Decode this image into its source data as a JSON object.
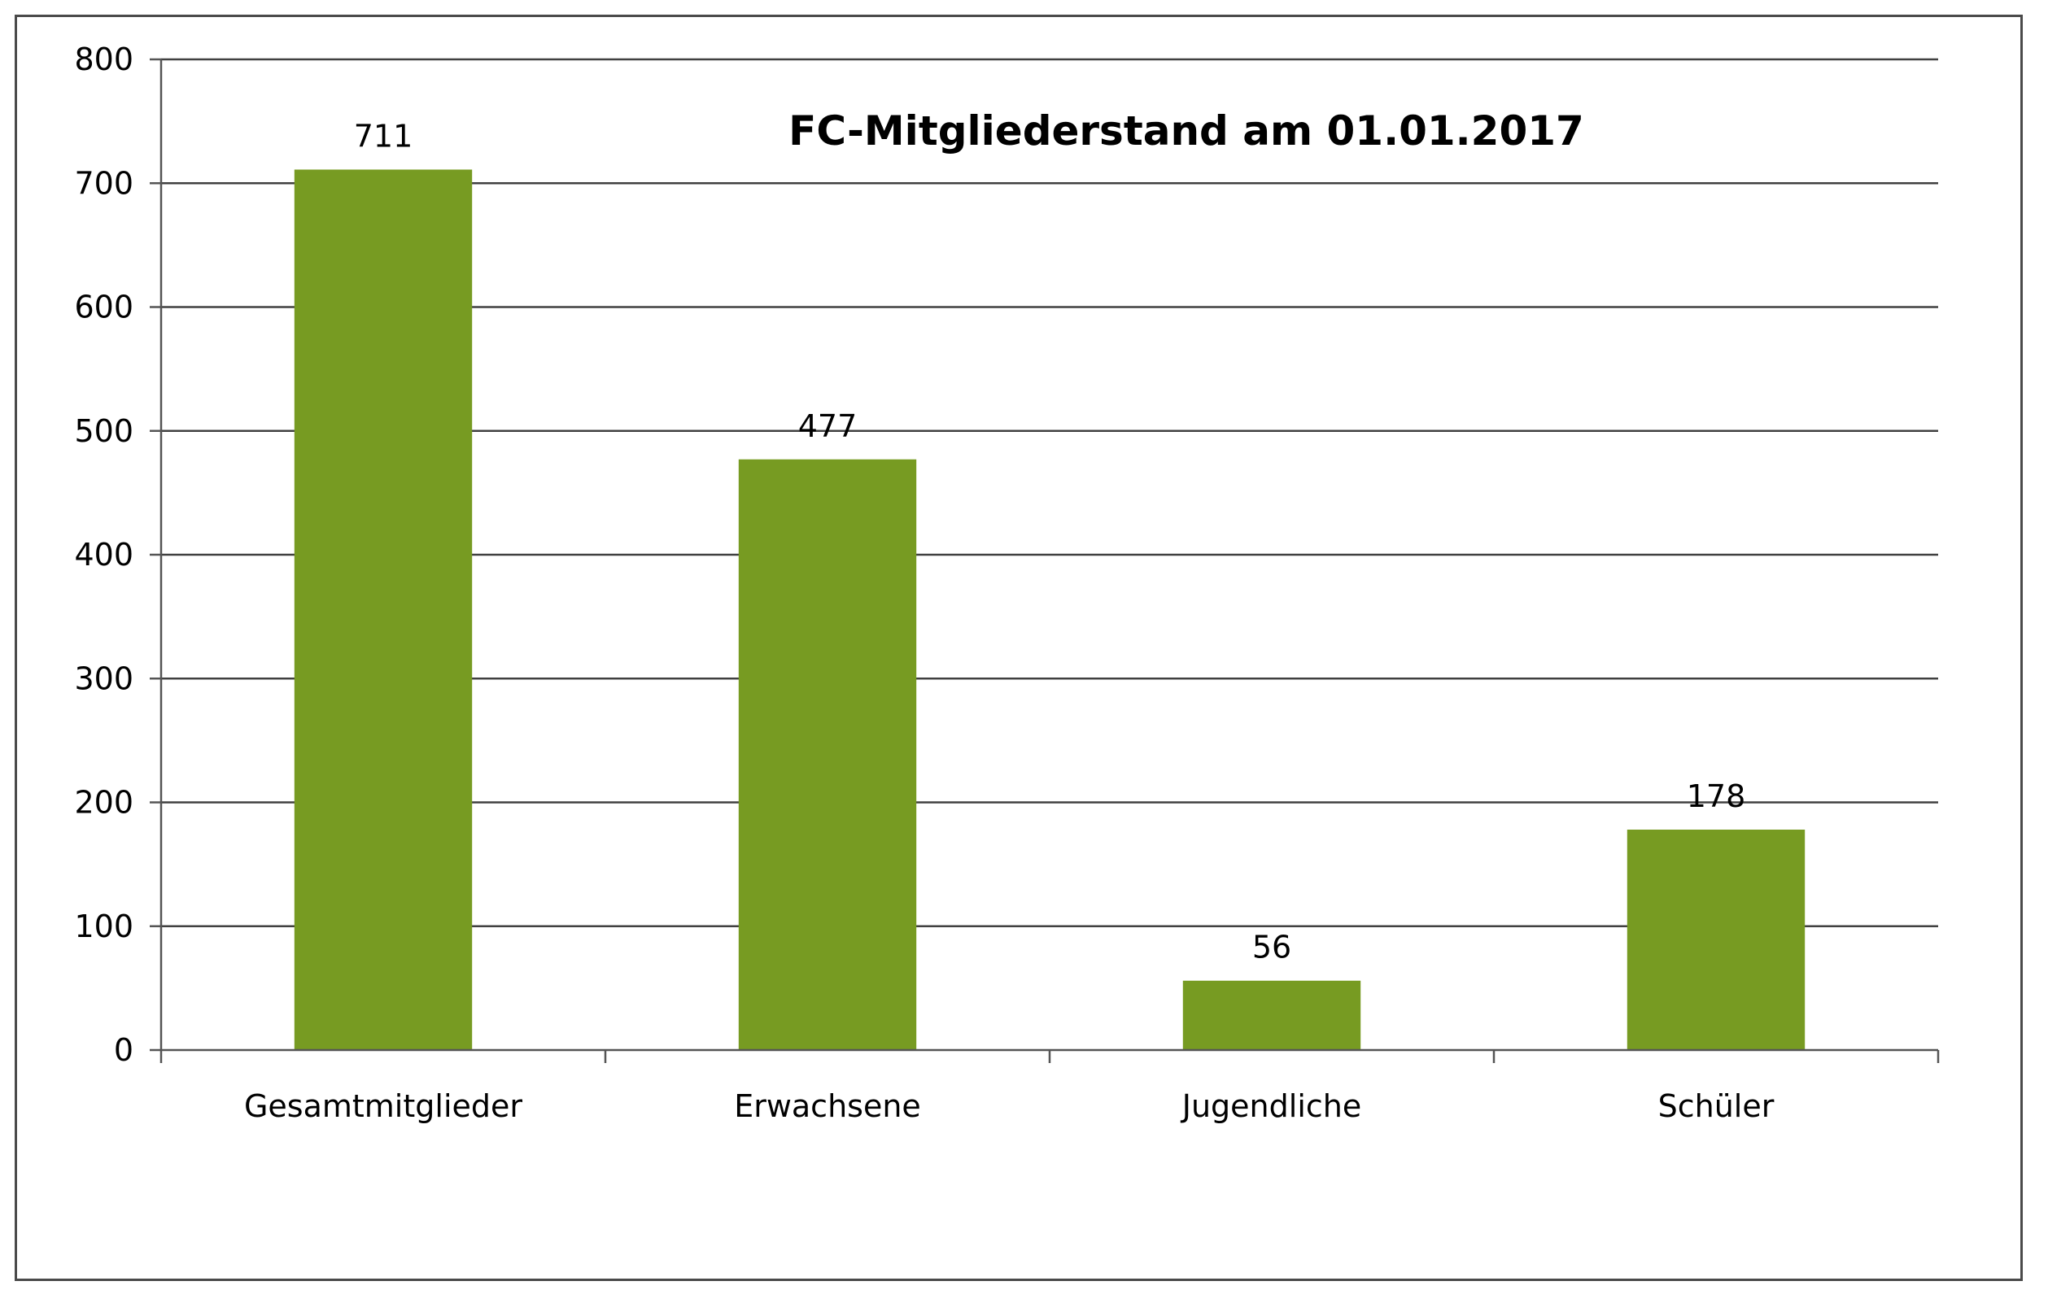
{
  "chart_data": {
    "type": "bar",
    "title": "FC-Mitgliederstand am 01.01.2017",
    "xlabel": "",
    "ylabel": "",
    "categories": [
      "Gesamtmitglieder",
      "Erwachsene",
      "Jugendliche",
      "Schüler"
    ],
    "values": [
      711,
      477,
      56,
      178
    ],
    "data_labels": [
      "711",
      "477",
      "56",
      "178"
    ],
    "ylim": [
      0,
      800
    ],
    "yticks": [
      0,
      100,
      200,
      300,
      400,
      500,
      600,
      700,
      800
    ],
    "ytick_labels": [
      "0",
      "100",
      "200",
      "300",
      "400",
      "500",
      "600",
      "700",
      "800"
    ],
    "grid": true,
    "legend": "none",
    "colors": {
      "bar": "#779b22",
      "grid": "#404040",
      "axis": "#555555"
    }
  }
}
